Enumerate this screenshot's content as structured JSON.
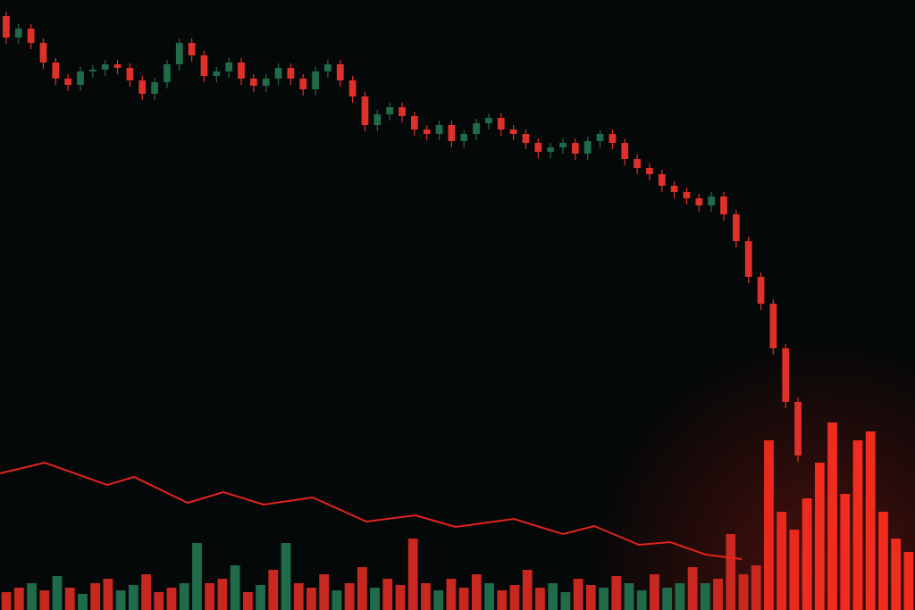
{
  "chart_data": [
    {
      "type": "candlestick",
      "up_color": "#1f6b4a",
      "down_color": "#e0302a",
      "xlim": [
        0,
        65
      ],
      "ylim": [
        0,
        683
      ],
      "open": [
        665,
        641,
        651,
        635,
        613,
        595,
        588,
        603,
        605,
        611,
        607,
        593,
        578,
        591,
        611,
        635,
        621,
        598,
        603,
        613,
        595,
        587,
        595,
        607,
        595,
        583,
        603,
        611,
        593,
        575,
        543,
        555,
        563,
        553,
        538,
        533,
        543,
        525,
        533,
        545,
        551,
        538,
        533,
        523,
        513,
        518,
        523,
        511,
        525,
        533,
        523,
        505,
        495,
        488,
        475,
        468,
        461,
        453,
        463,
        443,
        413,
        373,
        343,
        293,
        233
      ],
      "high": [
        670,
        656,
        656,
        640,
        618,
        600,
        608,
        610,
        616,
        616,
        612,
        598,
        596,
        616,
        640,
        640,
        626,
        608,
        618,
        618,
        600,
        600,
        612,
        612,
        600,
        608,
        616,
        616,
        598,
        580,
        560,
        568,
        568,
        558,
        543,
        548,
        548,
        538,
        550,
        556,
        556,
        543,
        538,
        528,
        523,
        528,
        528,
        530,
        538,
        538,
        528,
        510,
        500,
        493,
        480,
        473,
        466,
        468,
        468,
        448,
        418,
        378,
        348,
        298,
        238
      ],
      "low": [
        634,
        634,
        628,
        606,
        588,
        581,
        581,
        596,
        598,
        600,
        586,
        571,
        571,
        584,
        604,
        614,
        591,
        591,
        596,
        588,
        580,
        580,
        588,
        588,
        576,
        576,
        596,
        586,
        568,
        536,
        536,
        548,
        546,
        531,
        526,
        526,
        518,
        518,
        526,
        538,
        531,
        526,
        516,
        506,
        506,
        511,
        504,
        504,
        518,
        516,
        498,
        488,
        481,
        468,
        461,
        454,
        446,
        446,
        436,
        406,
        366,
        336,
        286,
        226,
        166
      ],
      "close": [
        641,
        651,
        635,
        613,
        595,
        588,
        603,
        605,
        611,
        607,
        593,
        578,
        591,
        611,
        635,
        621,
        598,
        603,
        613,
        595,
        587,
        595,
        607,
        595,
        583,
        603,
        611,
        593,
        575,
        543,
        555,
        563,
        553,
        538,
        533,
        543,
        525,
        533,
        545,
        551,
        538,
        533,
        523,
        513,
        518,
        523,
        511,
        525,
        533,
        523,
        505,
        495,
        488,
        475,
        468,
        461,
        453,
        463,
        443,
        413,
        373,
        343,
        293,
        233,
        173
      ]
    },
    {
      "type": "bar",
      "xlim": [
        0,
        72
      ],
      "ylim": [
        0,
        683
      ],
      "values": [
        20,
        25,
        30,
        22,
        38,
        25,
        18,
        30,
        35,
        22,
        28,
        40,
        20,
        25,
        30,
        75,
        30,
        35,
        50,
        20,
        28,
        45,
        75,
        30,
        25,
        40,
        22,
        30,
        48,
        25,
        35,
        28,
        80,
        30,
        22,
        35,
        25,
        40,
        30,
        22,
        28,
        45,
        25,
        30,
        20,
        35,
        28,
        25,
        38,
        30,
        22,
        40,
        25,
        30,
        48,
        30,
        35,
        85,
        40,
        50,
        190,
        110,
        90,
        125,
        165,
        210,
        130,
        190,
        200,
        110,
        80,
        65
      ],
      "colors": [
        "#c8281f",
        "#c8281f",
        "#1f6b4a",
        "#c8281f",
        "#1f6b4a",
        "#c8281f",
        "#1f6b4a",
        "#c8281f",
        "#c8281f",
        "#1f6b4a",
        "#1f6b4a",
        "#c8281f",
        "#c8281f",
        "#c8281f",
        "#1f6b4a",
        "#1f6b4a",
        "#c8281f",
        "#c8281f",
        "#1f6b4a",
        "#c8281f",
        "#1f6b4a",
        "#c8281f",
        "#1f6b4a",
        "#c8281f",
        "#c8281f",
        "#c8281f",
        "#1f6b4a",
        "#c8281f",
        "#c8281f",
        "#1f6b4a",
        "#c8281f",
        "#c8281f",
        "#c8281f",
        "#c8281f",
        "#1f6b4a",
        "#c8281f",
        "#c8281f",
        "#c8281f",
        "#1f6b4a",
        "#c8281f",
        "#c8281f",
        "#c8281f",
        "#c8281f",
        "#1f6b4a",
        "#1f6b4a",
        "#c8281f",
        "#c8281f",
        "#1f6b4a",
        "#c8281f",
        "#1f6b4a",
        "#1f6b4a",
        "#c8281f",
        "#1f6b4a",
        "#1f6b4a",
        "#c8281f",
        "#1f6b4a",
        "#c8281f",
        "#c8281f",
        "#c8281f",
        "#c8281f",
        "#e8291c",
        "#e8291c",
        "#e8291c",
        "#f02c1e",
        "#f02c1e",
        "#f02c1e",
        "#f02c1e",
        "#f02c1e",
        "#f02c1e",
        "#f02c1e",
        "#f02c1e",
        "#f02c1e"
      ],
      "line": {
        "color": "#e3241c",
        "xlim": [
          0,
          1024
        ],
        "x": [
          0,
          50,
          120,
          150,
          210,
          250,
          295,
          350,
          410,
          465,
          510,
          575,
          630,
          665,
          715,
          750,
          790,
          830
        ],
        "values": [
          153,
          165,
          140,
          149,
          120,
          132,
          118,
          126,
          99,
          106,
          93,
          102,
          85,
          94,
          73,
          76,
          62,
          57
        ]
      }
    }
  ]
}
